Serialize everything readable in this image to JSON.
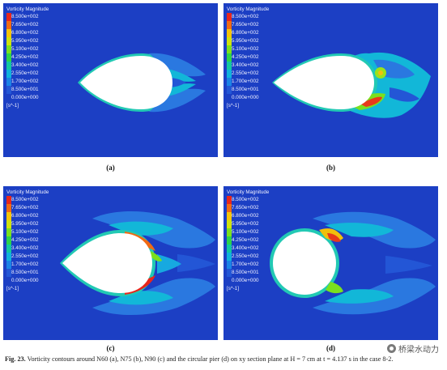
{
  "colorbar": {
    "title": "Vorticity Magnitude",
    "ticks": [
      "8.500e+002",
      "7.650e+002",
      "6.800e+002",
      "5.950e+002",
      "5.100e+002",
      "4.250e+002",
      "3.400e+002",
      "2.550e+002",
      "1.700e+002",
      "8.500e+001",
      "0.000e+000"
    ],
    "colors": [
      "#e8261c",
      "#f06a14",
      "#f5c40a",
      "#cfe20e",
      "#7be01e",
      "#2cd24a",
      "#12c7a0",
      "#10b2dc",
      "#1a83e6",
      "#2356d6",
      "#1c3fc4"
    ],
    "unit": "[s^-1]"
  },
  "panels": [
    {
      "label": "(a)",
      "pier": "N60"
    },
    {
      "label": "(b)",
      "pier": "N75"
    },
    {
      "label": "(c)",
      "pier": "N90"
    },
    {
      "label": "(d)",
      "pier": "circular"
    }
  ],
  "caption": {
    "figno": "Fig. 23.",
    "text": "Vorticity contours around N60 (a), N75 (b), N90 (c) and the circular pier (d) on xy section plane at H = 7 cm at t = 4.137 s in the case 8-2."
  },
  "watermark": "桥梁水动力"
}
